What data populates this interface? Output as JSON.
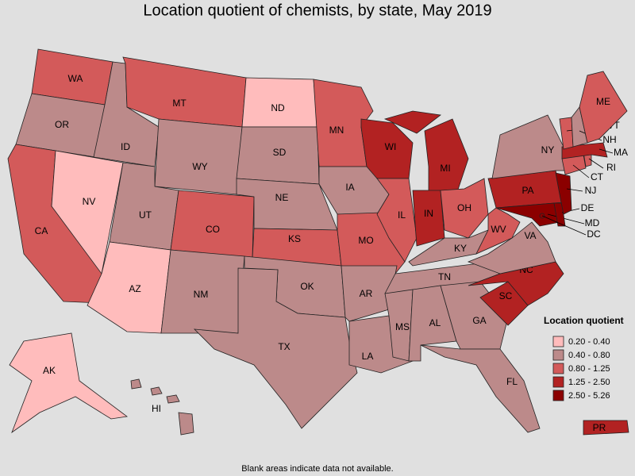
{
  "title": "Location quotient of chemists, by state, May 2019",
  "states": [
    {
      "abbr": "WA",
      "bin": 2
    },
    {
      "abbr": "OR",
      "bin": 1
    },
    {
      "abbr": "CA",
      "bin": 2
    },
    {
      "abbr": "NV",
      "bin": 0
    },
    {
      "abbr": "ID",
      "bin": 1
    },
    {
      "abbr": "MT",
      "bin": 2
    },
    {
      "abbr": "WY",
      "bin": 1
    },
    {
      "abbr": "UT",
      "bin": 1
    },
    {
      "abbr": "AZ",
      "bin": 0
    },
    {
      "abbr": "CO",
      "bin": 2
    },
    {
      "abbr": "NM",
      "bin": 1
    },
    {
      "abbr": "ND",
      "bin": 0
    },
    {
      "abbr": "SD",
      "bin": 1
    },
    {
      "abbr": "NE",
      "bin": 1
    },
    {
      "abbr": "KS",
      "bin": 2
    },
    {
      "abbr": "OK",
      "bin": 1
    },
    {
      "abbr": "TX",
      "bin": 1
    },
    {
      "abbr": "MN",
      "bin": 2
    },
    {
      "abbr": "IA",
      "bin": 1
    },
    {
      "abbr": "MO",
      "bin": 2
    },
    {
      "abbr": "AR",
      "bin": 1
    },
    {
      "abbr": "LA",
      "bin": 1
    },
    {
      "abbr": "WI",
      "bin": 3
    },
    {
      "abbr": "IL",
      "bin": 2
    },
    {
      "abbr": "MI",
      "bin": 3
    },
    {
      "abbr": "IN",
      "bin": 3
    },
    {
      "abbr": "OH",
      "bin": 2
    },
    {
      "abbr": "KY",
      "bin": 1
    },
    {
      "abbr": "TN",
      "bin": 1
    },
    {
      "abbr": "MS",
      "bin": 1
    },
    {
      "abbr": "AL",
      "bin": 1
    },
    {
      "abbr": "GA",
      "bin": 1
    },
    {
      "abbr": "FL",
      "bin": 1
    },
    {
      "abbr": "SC",
      "bin": 3
    },
    {
      "abbr": "NC",
      "bin": 3
    },
    {
      "abbr": "VA",
      "bin": 1
    },
    {
      "abbr": "WV",
      "bin": 2
    },
    {
      "abbr": "PA",
      "bin": 3
    },
    {
      "abbr": "NY",
      "bin": 1
    },
    {
      "abbr": "MD",
      "bin": 4
    },
    {
      "abbr": "DE",
      "bin": 4
    },
    {
      "abbr": "NJ",
      "bin": 4
    },
    {
      "abbr": "CT",
      "bin": 2
    },
    {
      "abbr": "RI",
      "bin": 2
    },
    {
      "abbr": "MA",
      "bin": 3
    },
    {
      "abbr": "VT",
      "bin": 2
    },
    {
      "abbr": "NH",
      "bin": 1
    },
    {
      "abbr": "ME",
      "bin": 2
    },
    {
      "abbr": "DC",
      "bin": 4
    },
    {
      "abbr": "AK",
      "bin": 0
    },
    {
      "abbr": "HI",
      "bin": 1
    },
    {
      "abbr": "PR",
      "bin": 3
    }
  ],
  "legend": {
    "title": "Location quotient",
    "bins": [
      {
        "label": "0.20 - 0.40",
        "color": "#ffbcbc"
      },
      {
        "label": "0.40 - 0.80",
        "color": "#bc8a8a"
      },
      {
        "label": "0.80 - 1.25",
        "color": "#d35a5a"
      },
      {
        "label": "1.25 - 2.50",
        "color": "#b22222"
      },
      {
        "label": "2.50 - 5.26",
        "color": "#8b0000"
      }
    ]
  },
  "footnote": "Blank areas indicate data not available."
}
